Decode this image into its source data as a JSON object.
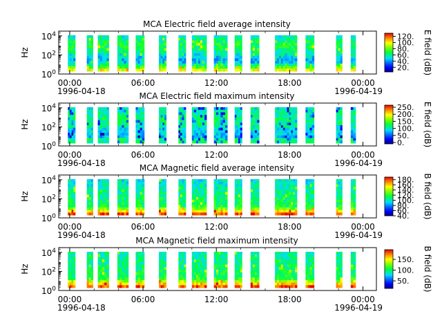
{
  "page": {
    "background": "#ffffff"
  },
  "chart_data": [
    {
      "type": "heatmap",
      "title": "MCA  Electric field average intensity",
      "ylabel": "Hz",
      "colorbar_label": "E field (dB)",
      "colorbar_ticks": [
        "20.",
        "40.",
        "60.",
        "80.",
        "100.",
        "120."
      ],
      "colorbar_range": [
        5,
        130
      ],
      "y_scale": "log",
      "y_tick_labels": [
        "10^0",
        "10^2",
        "10^4"
      ],
      "x_tick_labels": [
        "00:00",
        "06:00",
        "12:00",
        "18:00",
        "00:00"
      ],
      "x_start_date": "1996-04-18",
      "x_end_date": "1996-04-19",
      "data_intervals_hours": [
        [
          -0.15,
          0.45
        ],
        [
          1.4,
          1.9
        ],
        [
          2.3,
          3.2
        ],
        [
          3.9,
          4.8
        ],
        [
          5.4,
          6.1
        ],
        [
          7.3,
          7.9
        ],
        [
          8.9,
          9.5
        ],
        [
          10.0,
          11.2
        ],
        [
          11.8,
          12.9
        ],
        [
          13.5,
          14.1
        ],
        [
          14.8,
          15.5
        ],
        [
          16.8,
          18.6
        ],
        [
          19.3,
          20.0
        ],
        [
          21.8,
          22.3
        ],
        [
          23.0,
          23.4
        ]
      ],
      "value_bands": {
        "low_freq": "65-125 dB",
        "mid_freq": "50-80 dB",
        "high_freq": "40-70 dB"
      }
    },
    {
      "type": "heatmap",
      "title": "MCA  Electric field maximum intensity",
      "ylabel": "Hz",
      "colorbar_label": "E field (dB)",
      "colorbar_ticks": [
        "0.",
        "50.",
        "100.",
        "150.",
        "200.",
        "250."
      ],
      "colorbar_range": [
        -10,
        265
      ],
      "y_scale": "log",
      "y_tick_labels": [
        "10^0",
        "10^2",
        "10^4"
      ],
      "x_tick_labels": [
        "00:00",
        "06:00",
        "12:00",
        "18:00",
        "00:00"
      ],
      "x_start_date": "1996-04-18",
      "x_end_date": "1996-04-19",
      "data_intervals_hours": [
        [
          -0.15,
          0.45
        ],
        [
          1.4,
          1.9
        ],
        [
          2.3,
          3.2
        ],
        [
          3.9,
          4.8
        ],
        [
          5.4,
          6.1
        ],
        [
          7.3,
          7.9
        ],
        [
          8.9,
          9.5
        ],
        [
          10.0,
          11.2
        ],
        [
          11.8,
          12.9
        ],
        [
          13.5,
          14.1
        ],
        [
          14.8,
          15.5
        ],
        [
          16.8,
          18.6
        ],
        [
          19.3,
          20.0
        ],
        [
          21.8,
          22.3
        ],
        [
          23.0,
          23.4
        ]
      ],
      "value_bands": {
        "low_freq": "70-120 dB",
        "mid_freq": "80-110 dB",
        "high_freq": "60-100 dB"
      }
    },
    {
      "type": "heatmap",
      "title": "MCA  Magnetic field average intensity",
      "ylabel": "Hz",
      "colorbar_label": "B field (dB)",
      "colorbar_ticks": [
        "40.",
        "60.",
        "80.",
        "100.",
        "120.",
        "140.",
        "160.",
        "180."
      ],
      "colorbar_range": [
        40,
        190
      ],
      "y_scale": "log",
      "y_tick_labels": [
        "10^0",
        "10^2",
        "10^4"
      ],
      "x_tick_labels": [
        "00:00",
        "06:00",
        "12:00",
        "18:00",
        "00:00"
      ],
      "x_start_date": "1996-04-18",
      "x_end_date": "1996-04-19",
      "data_intervals_hours": [
        [
          -0.15,
          0.45
        ],
        [
          1.4,
          1.9
        ],
        [
          2.3,
          3.2
        ],
        [
          3.9,
          4.8
        ],
        [
          5.4,
          6.1
        ],
        [
          7.3,
          7.9
        ],
        [
          8.9,
          9.5
        ],
        [
          10.0,
          11.2
        ],
        [
          11.8,
          12.9
        ],
        [
          13.5,
          14.1
        ],
        [
          14.8,
          15.5
        ],
        [
          16.8,
          18.6
        ],
        [
          19.3,
          20.0
        ],
        [
          21.8,
          22.3
        ],
        [
          23.0,
          23.4
        ]
      ],
      "value_bands": {
        "low_freq": "120-175 dB",
        "mid_freq": "110-130 dB",
        "high_freq": "90-110 dB"
      }
    },
    {
      "type": "heatmap",
      "title": "MCA  Magnetic field maximum intensity",
      "ylabel": "Hz",
      "colorbar_label": "B field (dB)",
      "colorbar_ticks": [
        "50.",
        "100.",
        "150."
      ],
      "colorbar_range": [
        15,
        195
      ],
      "y_scale": "log",
      "y_tick_labels": [
        "10^0",
        "10^2",
        "10^4"
      ],
      "x_tick_labels": [
        "00:00",
        "06:00",
        "12:00",
        "18:00",
        "00:00"
      ],
      "x_start_date": "1996-04-18",
      "x_end_date": "1996-04-19",
      "data_intervals_hours": [
        [
          -0.15,
          0.45
        ],
        [
          1.4,
          1.9
        ],
        [
          2.3,
          3.2
        ],
        [
          3.9,
          4.8
        ],
        [
          5.4,
          6.1
        ],
        [
          7.3,
          7.9
        ],
        [
          8.9,
          9.5
        ],
        [
          10.0,
          11.2
        ],
        [
          11.8,
          12.9
        ],
        [
          13.5,
          14.1
        ],
        [
          14.8,
          15.5
        ],
        [
          16.8,
          18.6
        ],
        [
          19.3,
          20.0
        ],
        [
          21.8,
          22.3
        ],
        [
          23.0,
          23.4
        ]
      ],
      "value_bands": {
        "low_freq": "120-185 dB",
        "mid_freq": "100-130 dB",
        "high_freq": "90-110 dB"
      }
    }
  ]
}
